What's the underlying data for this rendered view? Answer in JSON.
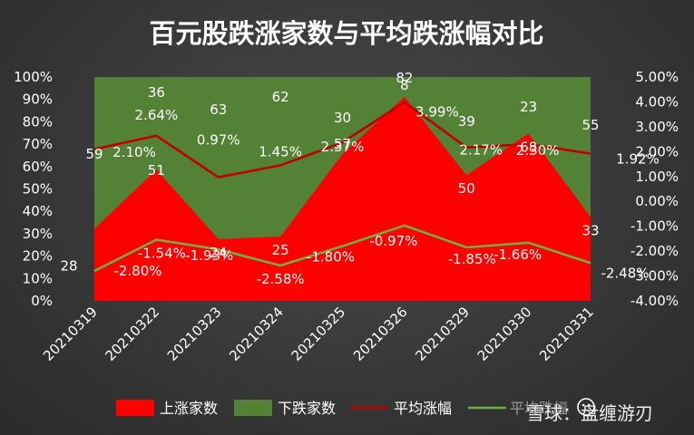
{
  "chart_data": {
    "type": "area",
    "title": "百元股跌涨家数与平均跌涨幅对比",
    "categories": [
      "20210319",
      "20210322",
      "20210323",
      "20210324",
      "20210325",
      "20210326",
      "20210329",
      "20210330",
      "20210331"
    ],
    "series": [
      {
        "name": "上涨家数",
        "type": "stacked-area-100",
        "axis": "left",
        "color": "#ff0000",
        "values": [
          28,
          51,
          24,
          25,
          57,
          82,
          50,
          68,
          33
        ]
      },
      {
        "name": "下跌家数",
        "type": "stacked-area-100",
        "axis": "left",
        "color": "#538135",
        "values": [
          59,
          36,
          63,
          62,
          30,
          8,
          39,
          23,
          55
        ]
      },
      {
        "name": "平均涨幅",
        "type": "line",
        "axis": "right",
        "color": "#c00000",
        "values": [
          2.1,
          2.64,
          0.97,
          1.45,
          2.37,
          3.99,
          2.17,
          2.3,
          1.92
        ]
      },
      {
        "name": "平均跌幅",
        "type": "line",
        "axis": "right",
        "color": "#70ad47",
        "values": [
          -2.8,
          -1.54,
          -1.93,
          -2.58,
          -1.8,
          -0.97,
          -1.85,
          -1.66,
          -2.48
        ]
      }
    ],
    "left_axis": {
      "ticks": [
        "0%",
        "10%",
        "20%",
        "30%",
        "40%",
        "50%",
        "60%",
        "70%",
        "80%",
        "90%",
        "100%"
      ],
      "ylim": [
        0,
        100
      ]
    },
    "right_axis": {
      "ticks": [
        "-4.00%",
        "-3.00%",
        "-2.00%",
        "-1.00%",
        "0.00%",
        "1.00%",
        "2.00%",
        "3.00%",
        "4.00%",
        "5.00%"
      ],
      "ylim": [
        -4,
        5
      ]
    },
    "rise_pct_labels": [
      "2.10%",
      "2.64%",
      "0.97%",
      "1.45%",
      "2.37%",
      "3.99%",
      "2.17%",
      "2.30%",
      "1.92%"
    ],
    "fall_pct_labels": [
      "-2.80%",
      "-1.54%",
      "-1.93%",
      "-2.58%",
      "-1.80%",
      "-0.97%",
      "-1.85%",
      "-1.66%",
      "-2.48%"
    ],
    "legend": {
      "position": "bottom",
      "items": [
        "上涨家数",
        "下跌家数",
        "平均涨幅",
        "平均跌幅"
      ]
    },
    "grid": false
  },
  "watermark": {
    "text": "雪球：盘缠游刃",
    "handle": "盘缠游刃"
  }
}
